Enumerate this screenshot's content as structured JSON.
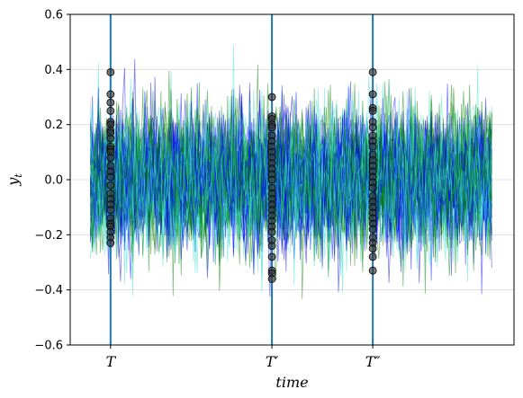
{
  "chart_data": {
    "type": "line",
    "title": "",
    "xlabel": "time",
    "ylabel": "y_t",
    "ylabel_base": "y",
    "ylabel_sub": "t",
    "ylim": [
      -0.6,
      0.6
    ],
    "xlim": [
      -10,
      210
    ],
    "yticks": [
      -0.6,
      -0.4,
      -0.2,
      0.0,
      0.2,
      0.4,
      0.6
    ],
    "ytick_labels": [
      "−0.6",
      "−0.4",
      "−0.2",
      "0.0",
      "0.2",
      "0.4",
      "0.6"
    ],
    "grid": "horizontal",
    "legend": "none",
    "series_count": 60,
    "series_length": 200,
    "series_distribution": {
      "mean": 0.0,
      "std": 0.12
    },
    "series_colors": [
      "#0000ff",
      "#008000",
      "#40e0d0"
    ],
    "series_alpha": 0.5,
    "vertical_lines": [
      {
        "x": 10,
        "label": "T"
      },
      {
        "x": 90,
        "label": "T′"
      },
      {
        "x": 140,
        "label": "T″"
      }
    ],
    "vline_color": "#1f77b4",
    "marker_color": "#333333",
    "cross_section_values": [
      [
        0.39,
        0.31,
        0.28,
        0.25,
        0.21,
        0.2,
        0.18,
        0.17,
        0.15,
        0.12,
        0.11,
        0.1,
        0.08,
        0.05,
        0.03,
        0.01,
        -0.02,
        -0.05,
        -0.07,
        -0.09,
        -0.11,
        -0.14,
        -0.16,
        -0.17,
        -0.19,
        -0.21,
        -0.23
      ],
      [
        0.3,
        0.23,
        0.22,
        0.2,
        0.19,
        0.16,
        0.14,
        0.12,
        0.1,
        0.08,
        0.06,
        0.04,
        0.02,
        0.0,
        -0.03,
        -0.05,
        -0.07,
        -0.09,
        -0.11,
        -0.13,
        -0.15,
        -0.17,
        -0.19,
        -0.22,
        -0.24,
        -0.28,
        -0.33,
        -0.34,
        -0.36
      ],
      [
        0.39,
        0.31,
        0.26,
        0.25,
        0.21,
        0.19,
        0.16,
        0.14,
        0.12,
        0.09,
        0.07,
        0.05,
        0.03,
        0.01,
        -0.01,
        -0.03,
        -0.06,
        -0.08,
        -0.1,
        -0.12,
        -0.14,
        -0.16,
        -0.18,
        -0.21,
        -0.23,
        -0.25,
        -0.28,
        -0.33
      ]
    ]
  }
}
